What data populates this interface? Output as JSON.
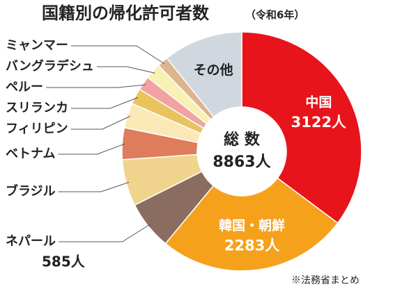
{
  "chart_data": {
    "type": "donut",
    "title": "国籍別の帰化許可者数",
    "subtitle": "（令和6年）",
    "center_label": "総 数",
    "center_value": "8863人",
    "source": "※法務省まとめ",
    "categories": [
      "中国",
      "韓国・朝鮮",
      "ネパール",
      "ブラジル",
      "ベトナム",
      "フィリピン",
      "スリランカ",
      "ペルー",
      "バングラデシュ",
      "ミャンマー",
      "その他"
    ],
    "values": [
      3122,
      2283,
      585,
      560,
      380,
      300,
      190,
      170,
      190,
      130,
      953
    ],
    "value_labels": [
      "3122人",
      "2283人",
      "585人",
      null,
      null,
      null,
      null,
      null,
      null,
      null,
      null
    ],
    "colors": [
      "#e8141b",
      "#f6a11c",
      "#8a6d60",
      "#f0d48e",
      "#df7c5b",
      "#fae8b6",
      "#e8c35e",
      "#f0a3a0",
      "#f8f0b4",
      "#dcb48e",
      "#d0d7de"
    ]
  }
}
